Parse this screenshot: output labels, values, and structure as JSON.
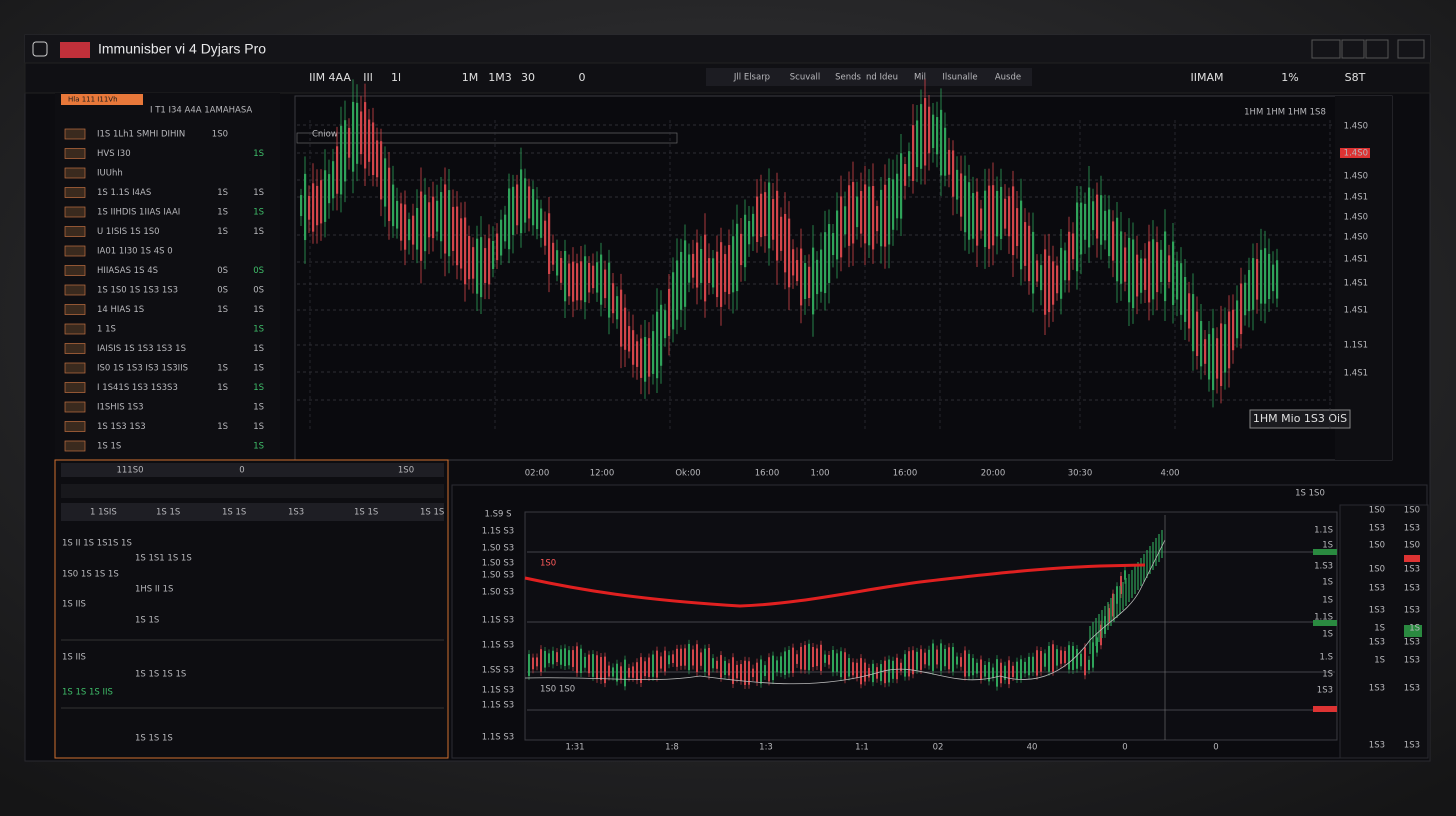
{
  "header": {
    "title": "Immunisber vi 4 Dyjars Pro",
    "toolbar": [
      "IIM 4AA",
      "IIl",
      "1l",
      "1M",
      "1M3",
      "30",
      "0"
    ],
    "tabs": [
      "Jll Elsarp",
      "Scuvall",
      "Sends",
      "nd Ideu",
      "Mil",
      "Ilsunalle",
      "Ausde"
    ],
    "right_tools": [
      "IIMAM",
      "1%",
      "S8T"
    ]
  },
  "watchlist": {
    "tab": "Hla 111 I11Vh",
    "heading": "I T1 I34 A4A 1AMAHASA",
    "rows": [
      [
        "I1S 1Lh1 SMHI DIHIN",
        "1S0",
        ""
      ],
      [
        "HVS I30",
        "",
        "1S"
      ],
      [
        "IUUhh",
        "",
        ""
      ],
      [
        "1S 1.1S I4AS",
        "1S",
        "1S"
      ],
      [
        "1S IIHDIS 1IIAS IAAI",
        "1S",
        "1S"
      ],
      [
        "U 1ISIS 1S 1S0",
        "1S",
        "1S"
      ],
      [
        "IA01 1I30 1S 4S 0",
        "",
        ""
      ],
      [
        "HIIASAS 1S 4S",
        "0S",
        "0S"
      ],
      [
        "1S 1S0 1S 1S3 1S3",
        "0S",
        "0S"
      ],
      [
        "14 HIAS 1S",
        "1S",
        "1S"
      ],
      [
        "1 1S",
        "",
        "1S"
      ],
      [
        "IAISIS 1S 1S3 1S3 1S",
        "",
        "1S"
      ],
      [
        "IS0 1S 1S3 IS3 1S3IIS",
        "1S",
        "1S"
      ],
      [
        "I 1S41S 1S3 1S3S3",
        "1S",
        "1S"
      ],
      [
        "I1SHIS 1S3",
        "",
        "1S"
      ],
      [
        "1S 1S3 1S3",
        "1S",
        "1S"
      ],
      [
        "1S 1S",
        "",
        "1S"
      ]
    ]
  },
  "main_chart": {
    "label": "Cniow",
    "legend": "1HM 1HM 1HM 1S8",
    "badge": "1HM Mio 1S3 OiS",
    "price_labels": [
      "1.4S0",
      "1.4S0",
      "1.4S0",
      "1.4S1",
      "1.4S0",
      "1.4S0",
      "1.4S1",
      "1.4S1",
      "1.4S1",
      "1.1S1",
      "1.4S1"
    ],
    "time_labels": [
      "02:00",
      "12:00",
      "Ok:00",
      "16:00",
      "1:00",
      "16:00",
      "20:00",
      "30:30",
      "4:00"
    ]
  },
  "orders": {
    "tabs": [
      "111S0",
      "0",
      "1S0"
    ],
    "columns": [
      "1 1SIS",
      "1S 1S",
      "1S 1S",
      "1S3",
      "1S 1S",
      "1S 1S"
    ],
    "lines": [
      "1S II 1S 1S1S 1S",
      "1S 1S1 1S 1S",
      "1S0 1S 1S 1S",
      "1HS II 1S",
      "1S IIS",
      "1S 1S",
      "1S IIS",
      "1S 1S 1S 1S",
      "1S 1S 1S IIS",
      "1S 1S 1S"
    ]
  },
  "lower_chart": {
    "header": "1S 1S0",
    "inner_label": "1S0 1S0",
    "curve_label": "1S0",
    "left_labels": [
      "1.S9 S",
      "1.1S S3",
      "1.S0 S3",
      "1.S0 S3",
      "1.S0 S3",
      "1.S0 S3",
      "1.1S S3",
      "1.1S S3",
      "1.SS S3",
      "1.1S S3",
      "1.1S S3",
      "1.1S S3"
    ],
    "right_labels": [
      "1.1S",
      "1S",
      "1.S3",
      "1S",
      "1S",
      "1.1S",
      "1S",
      "1.S",
      "1S",
      "1S3"
    ],
    "time_labels": [
      "1:31",
      "1:8",
      "1:3",
      "1:1",
      "02",
      "40",
      "0",
      "0"
    ],
    "side_a": [
      "1S0",
      "1S3",
      "1S0",
      "1S0",
      "1S3",
      "1S3",
      "1S",
      "1S3",
      "1S",
      "1S3",
      "1S3"
    ],
    "side_b": [
      "1S0",
      "1S3",
      "1S0",
      "1S3",
      "1S3",
      "1S3",
      "1S",
      "1S3",
      "1S3",
      "1S3",
      "1S3"
    ]
  }
}
